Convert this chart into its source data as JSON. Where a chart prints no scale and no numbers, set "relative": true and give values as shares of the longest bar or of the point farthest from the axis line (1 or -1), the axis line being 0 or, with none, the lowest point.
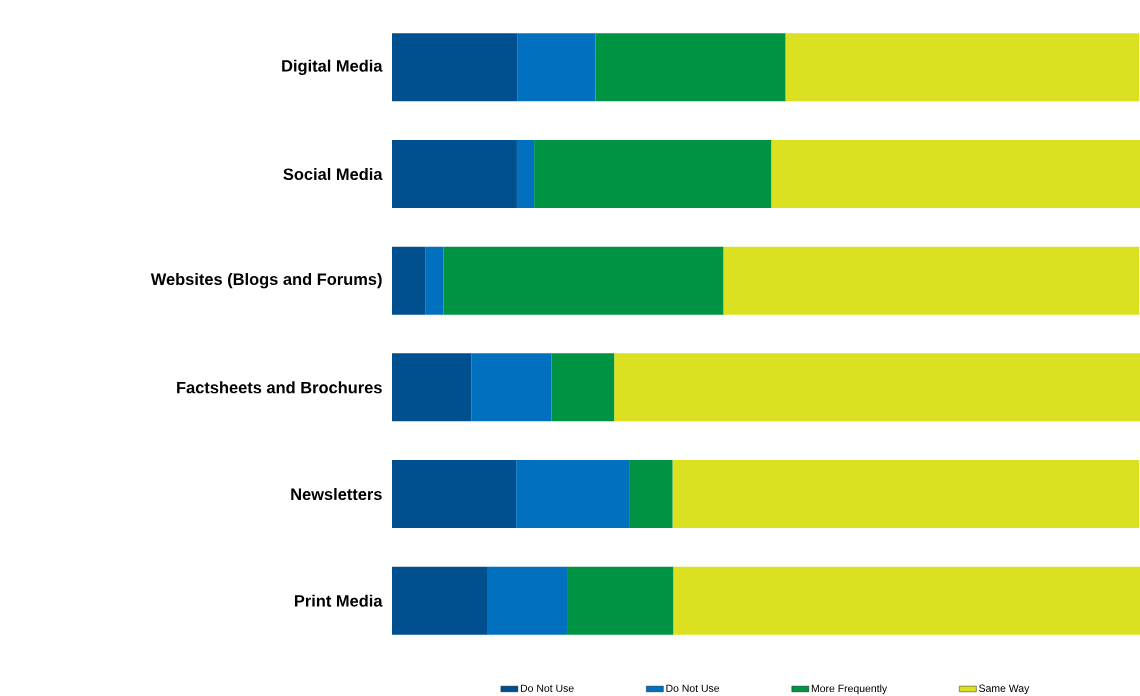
{
  "chart_data": {
    "type": "bar",
    "orientation": "horizontal",
    "stacked": true,
    "relative": true,
    "legend": "bottom",
    "categories": [
      "Digital Media",
      "Social Media",
      "Websites (Blogs and Forums)",
      "Factsheets and Brochures",
      "Newsletters",
      "Print Media"
    ],
    "series": [
      {
        "name": "Do Not Use",
        "color": "#004f8f",
        "values": [
          0.168,
          0.167,
          0.045,
          0.106,
          0.166,
          0.127
        ]
      },
      {
        "name": "Do Not Use",
        "color": "#0070bf",
        "values": [
          0.104,
          0.023,
          0.024,
          0.107,
          0.152,
          0.107
        ]
      },
      {
        "name": "More Frequently",
        "color": "#009344",
        "values": [
          0.254,
          0.317,
          0.374,
          0.084,
          0.057,
          0.142
        ]
      },
      {
        "name": "Same Way",
        "color": "#dbe021",
        "values": [
          0.473,
          0.493,
          0.556,
          0.703,
          0.624,
          0.624
        ]
      }
    ]
  }
}
